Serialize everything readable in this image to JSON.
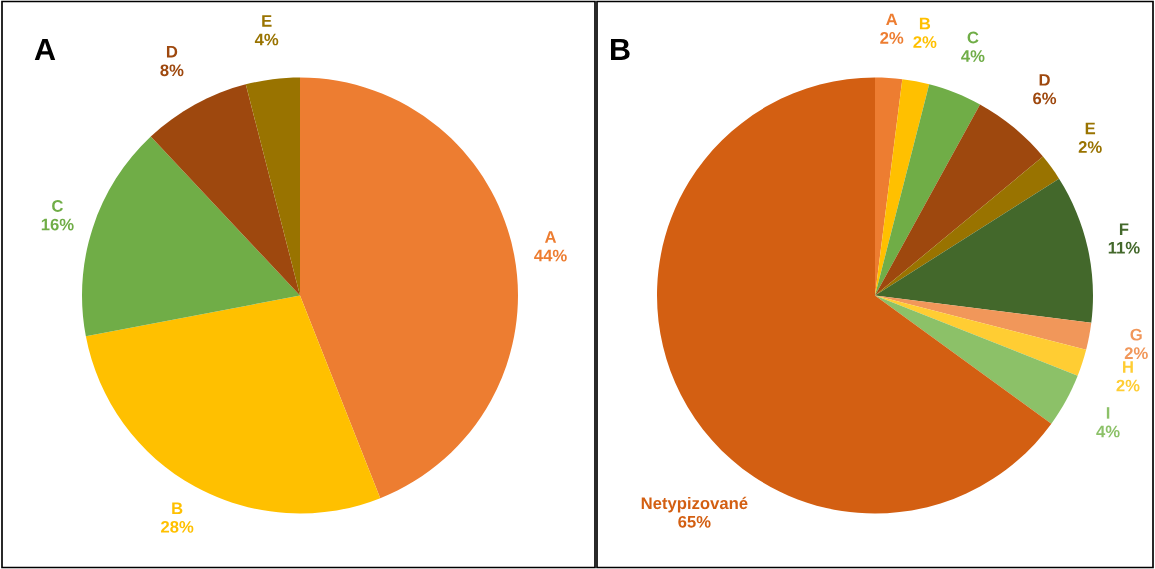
{
  "chart_data": [
    {
      "type": "pie",
      "title": "A",
      "categories": [
        "A",
        "B",
        "C",
        "D",
        "E"
      ],
      "values": [
        44,
        28,
        16,
        8,
        4
      ],
      "value_labels": [
        "44%",
        "28%",
        "16%",
        "8%",
        "4%"
      ],
      "colors": [
        "#ED7D31",
        "#FFC000",
        "#70AD47",
        "#9E480E",
        "#997300"
      ]
    },
    {
      "type": "pie",
      "title": "B",
      "categories": [
        "A",
        "B",
        "C",
        "D",
        "E",
        "F",
        "G",
        "H",
        "I",
        "Netypizované"
      ],
      "values": [
        2,
        2,
        4,
        6,
        2,
        11,
        2,
        2,
        4,
        65
      ],
      "value_labels": [
        "2%",
        "2%",
        "4%",
        "6%",
        "2%",
        "11%",
        "2%",
        "2%",
        "4%",
        "65%"
      ],
      "colors": [
        "#ED7D31",
        "#FFC000",
        "#70AD47",
        "#9E480E",
        "#997300",
        "#43682B",
        "#F1975A",
        "#FFCD33",
        "#8CC168",
        "#D35F12"
      ]
    }
  ]
}
